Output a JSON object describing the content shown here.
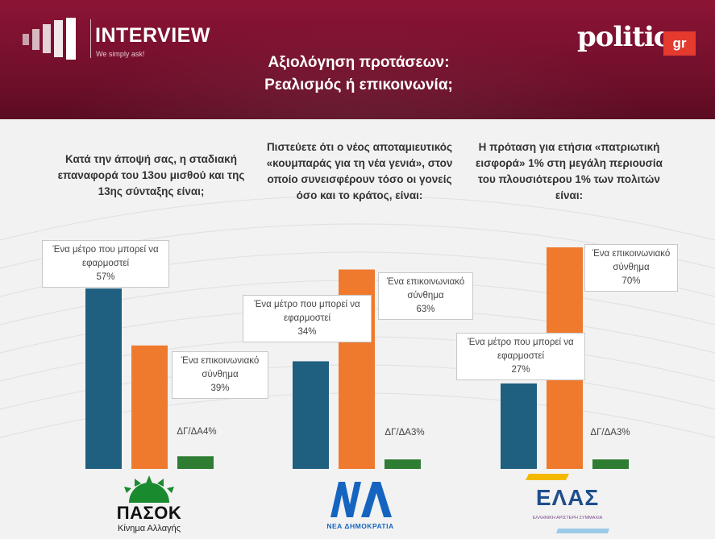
{
  "header": {
    "brand_name": "INTERVIEW",
    "brand_tagline": "We simply ask!",
    "title_line1": "Αξιολόγηση προτάσεων:",
    "title_line2": "Ρεαλισμός ή επικοινωνία;",
    "partner_logo": "politic",
    "partner_logo_badge": "gr"
  },
  "colors": {
    "header_bg": "#7a1230",
    "measure": "#1f5f7f",
    "communication": "#ef7a2e",
    "dk_na": "#2e7d32",
    "pasok_green": "#1a8a2f",
    "nd_blue": "#1565c0"
  },
  "questions": [
    [
      "Κατά την άποψή σας, η σταδιακή",
      "επαναφορά του 13ου μισθού και της",
      "13ης σύνταξης είναι;"
    ],
    [
      "Πιστεύετε ότι ο νέος αποταμιευτικός",
      "«κουμπαράς για τη νέα γενιά», στον",
      "οποίο συνεισφέρουν τόσο οι γονείς",
      "όσο και το κράτος, είναι:"
    ],
    [
      "Η πρόταση για ετήσια «πατριωτική",
      "εισφορά» 1% στη μεγάλη περιουσία",
      "του πλουσιότερου 1% των πολιτών",
      "είναι:"
    ]
  ],
  "labels": {
    "measure_l1": "Ένα μέτρο που μπορεί να",
    "measure_l2": "εφαρμοστεί",
    "comm_l1": "Ένα επικοινωνιακό",
    "comm_l2": "σύνθημα",
    "dkna": "ΔΓ/ΔΑ"
  },
  "parties": {
    "pasok_name": "ΠΑΣΟΚ",
    "pasok_sub": "Κίνημα Αλλαγής",
    "nd_mark": "ΝΔ",
    "nd_name": "ΝΕΑ ΔΗΜΟΚΡΑΤΙΑ",
    "elas_name": "ΕΛΑΣ",
    "elas_sub": "ΕΛΛΗΝΙΚΗ ΑΡΙΣΤΕΡΗ ΣΥΜΜΑΧΙΑ"
  },
  "chart_data": {
    "type": "bar",
    "title": "Αξιολόγηση προτάσεων: Ρεαλισμός ή επικοινωνία;",
    "categories": [
      "ΠΑΣΟΚ",
      "ΝΔ",
      "ΕΛΑΣ"
    ],
    "series": [
      {
        "name": "Ένα μέτρο που μπορεί να εφαρμοστεί",
        "values": [
          57,
          34,
          27
        ],
        "labels": [
          "57%",
          "34%",
          "27%"
        ]
      },
      {
        "name": "Ένα επικοινωνιακό σύνθημα",
        "values": [
          39,
          63,
          70
        ],
        "labels": [
          "39%",
          "63%",
          "70%"
        ]
      },
      {
        "name": "ΔΓ/ΔΑ",
        "values": [
          4,
          3,
          3
        ],
        "labels": [
          "4%",
          "3%",
          "3%"
        ]
      }
    ],
    "ylim": [
      0,
      72
    ],
    "grid": false,
    "legend": "none"
  }
}
